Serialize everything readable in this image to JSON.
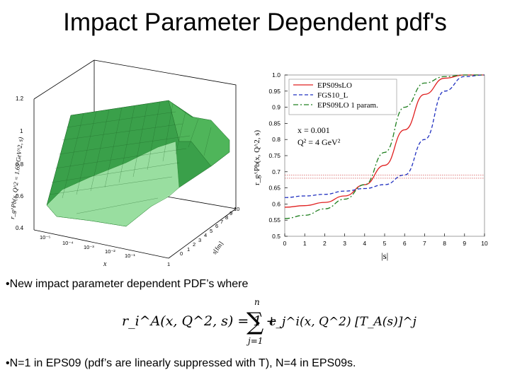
{
  "slide": {
    "title": "Impact Parameter Dependent pdf's",
    "bullet1": "•New impact parameter dependent PDF’s where",
    "bullet2": "•N=1 in EPS09 (pdf’s are linearly suppressed with T), N=4 in EPS09s."
  },
  "surface_plot": {
    "z_label": "r_g^Pb(x, Q^2 = 1.69 GeV^2, s)",
    "x_label": "x",
    "s_label": "s[fm]",
    "z_ticks": [
      "0.4",
      "0.6",
      "0.8",
      "1",
      "1.2"
    ],
    "x_ticks": [
      "10⁻⁵",
      "10⁻⁴",
      "10⁻³",
      "10⁻²",
      "10⁻¹",
      "1"
    ],
    "s_ticks": [
      "0",
      "2",
      "4",
      "6",
      "8",
      "10"
    ],
    "s_minor_ticks": [
      "1",
      "3",
      "5",
      "7",
      "9"
    ],
    "surface_color": "#2e9a3a"
  },
  "formula": {
    "lhs": "r_i^A(x, Q^2, s) = 1 +",
    "sum_top": "n",
    "sum_bottom": "j=1",
    "rhs": "c_j^i(x, Q^2) [T_A(s)]^j"
  },
  "chart_data": {
    "type": "line",
    "xlabel": "|s|",
    "ylabel": "r_g^Pb(x, Q^2, s)",
    "xlim": [
      0,
      10
    ],
    "ylim": [
      0.5,
      1.0
    ],
    "x_ticks": [
      0,
      1,
      2,
      3,
      4,
      5,
      6,
      7,
      8,
      9,
      10
    ],
    "y_ticks": [
      0.5,
      0.55,
      0.6,
      0.65,
      0.7,
      0.75,
      0.8,
      0.85,
      0.9,
      0.95,
      1.0
    ],
    "legend_position": "top-left",
    "annotations": [
      "x = 0.001",
      "Q² = 4 GeV²"
    ],
    "reference_lines": [
      0.68,
      0.69
    ],
    "series": [
      {
        "name": "EPS09sLO",
        "color": "#e02020",
        "dash": "solid",
        "x": [
          0,
          1,
          2,
          3,
          4,
          5,
          6,
          7,
          8,
          9,
          10
        ],
        "y": [
          0.59,
          0.595,
          0.605,
          0.625,
          0.66,
          0.72,
          0.83,
          0.94,
          0.99,
          1.0,
          1.0
        ]
      },
      {
        "name": "FGS10_L",
        "color": "#2030c0",
        "dash": "dashed",
        "x": [
          0,
          1,
          2,
          3,
          4,
          5,
          6,
          7,
          8,
          9,
          10
        ],
        "y": [
          0.62,
          0.625,
          0.63,
          0.64,
          0.648,
          0.66,
          0.69,
          0.8,
          0.95,
          0.995,
          1.0
        ]
      },
      {
        "name": "EPS09LO 1 param.",
        "color": "#208020",
        "dash": "dashdot",
        "x": [
          0,
          1,
          2,
          3,
          4,
          5,
          6,
          7,
          8,
          9,
          10
        ],
        "y": [
          0.555,
          0.565,
          0.585,
          0.615,
          0.66,
          0.76,
          0.9,
          0.975,
          0.995,
          1.0,
          1.0
        ]
      }
    ]
  }
}
